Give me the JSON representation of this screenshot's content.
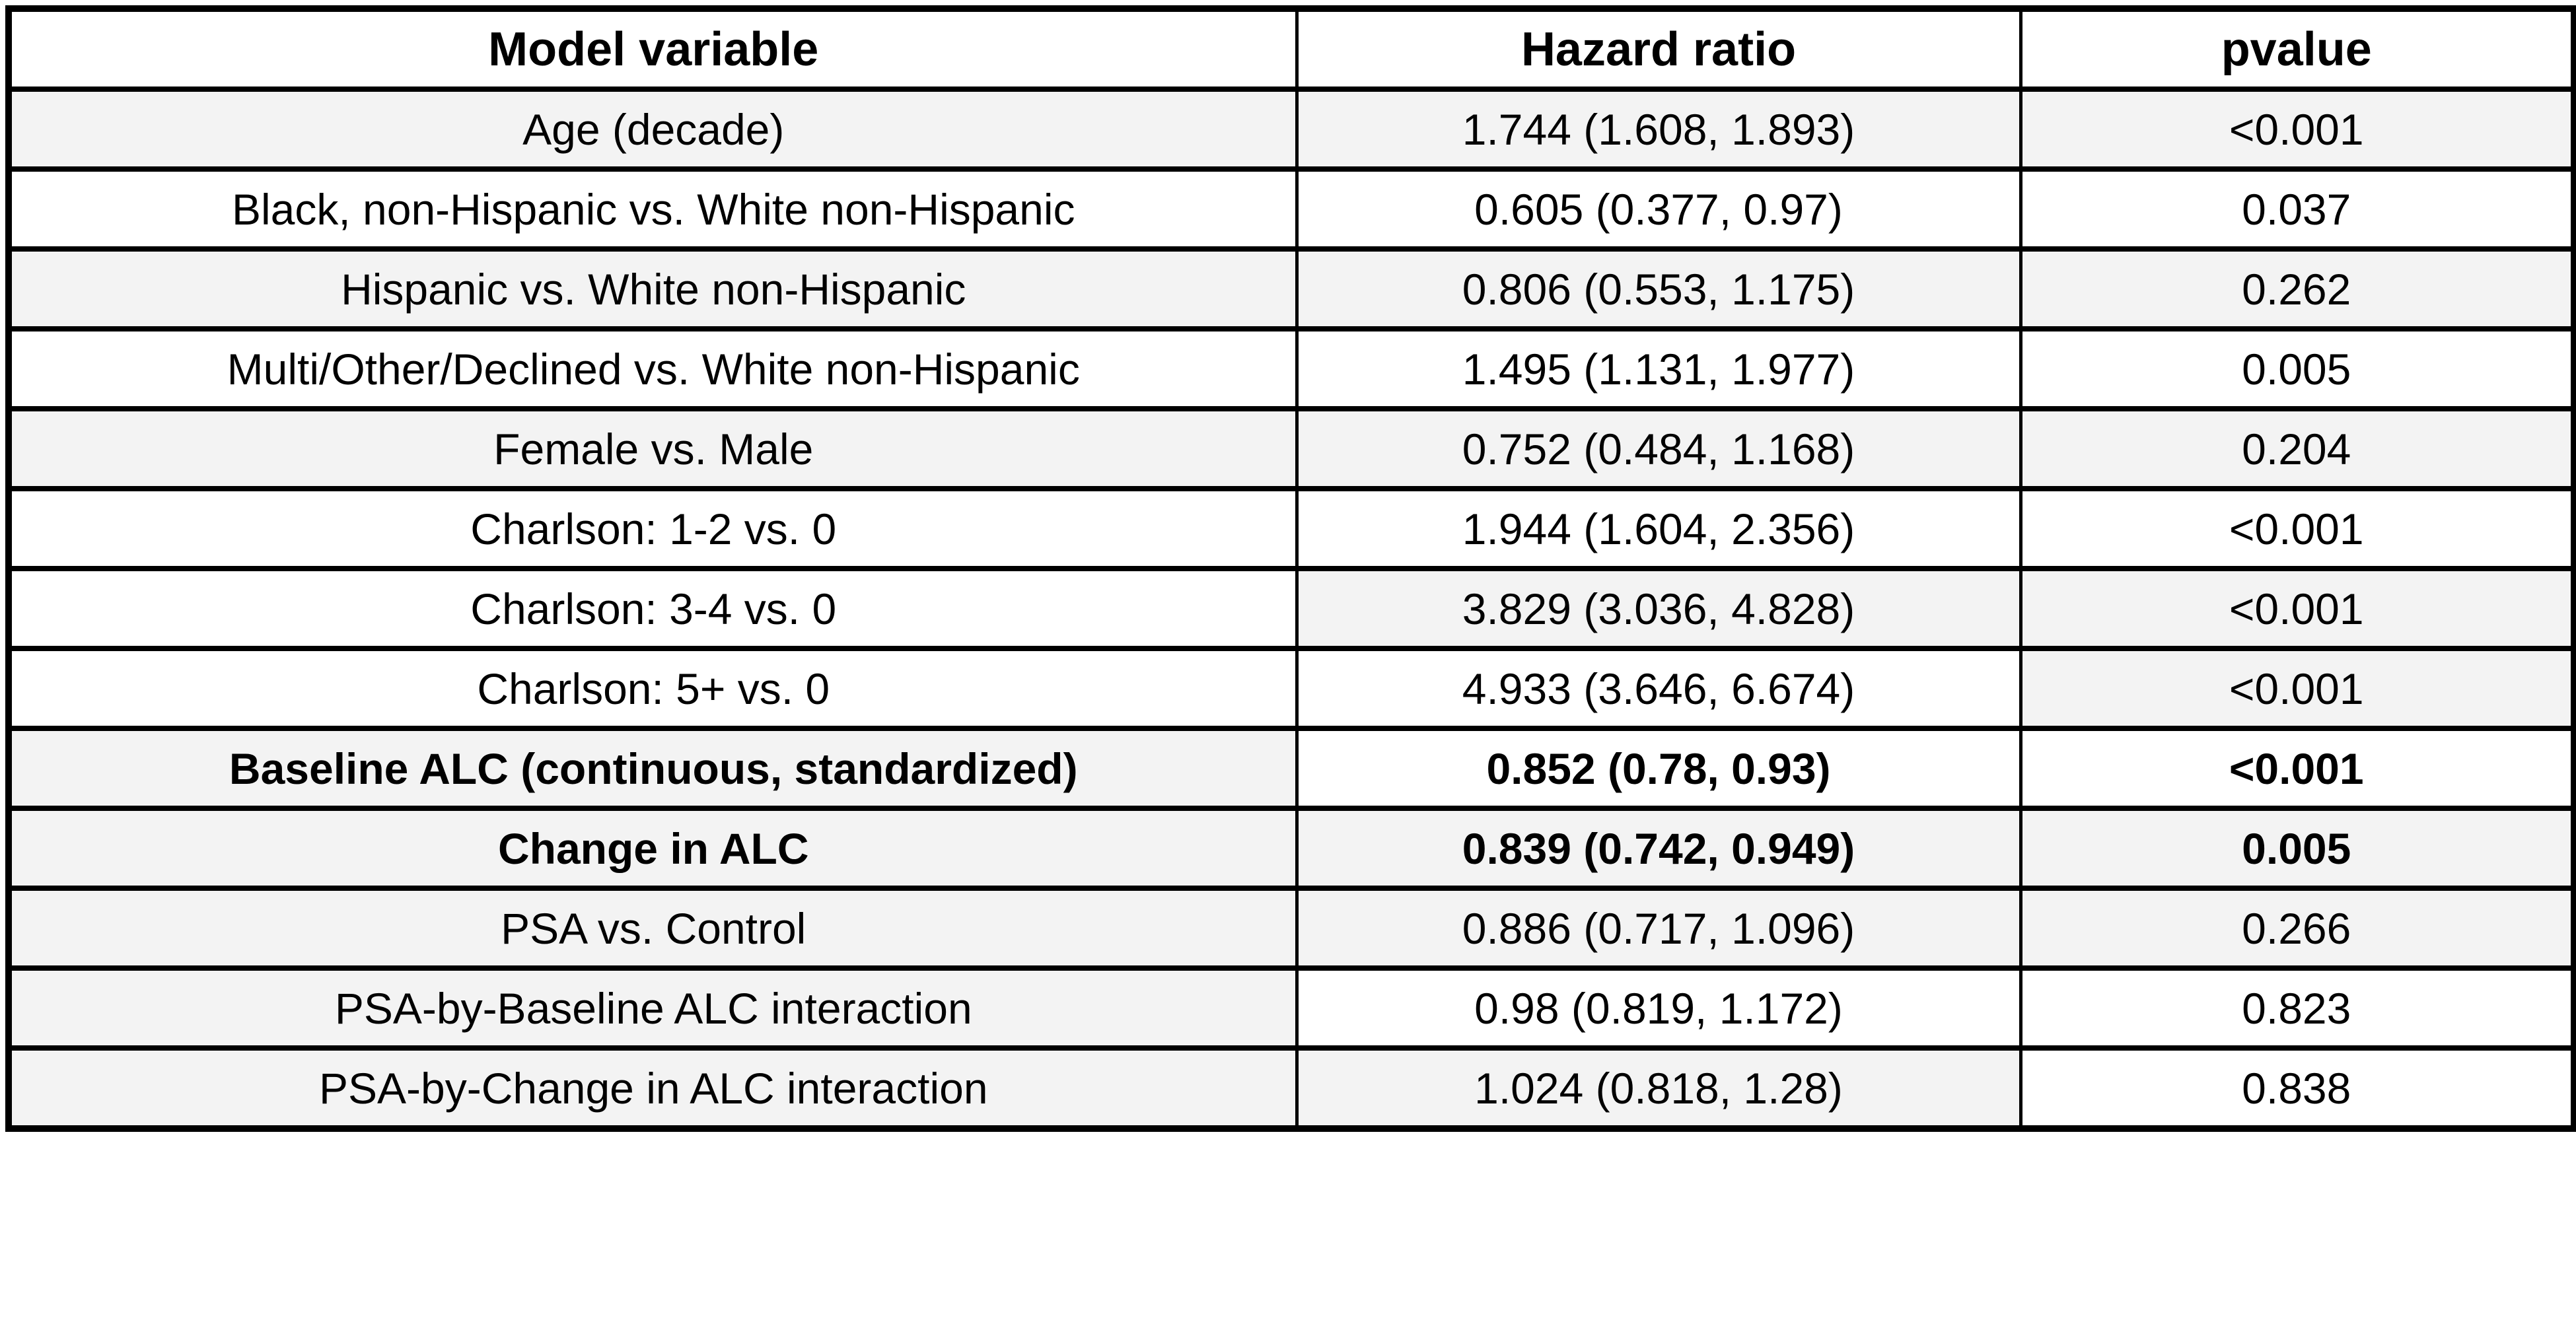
{
  "colors": {
    "background": "#ffffff",
    "border": "#000000",
    "text": "#000000",
    "row_shade": "#f3f3f3"
  },
  "table": {
    "columns": [
      "Model variable",
      "Hazard ratio",
      "pvalue"
    ],
    "rows": [
      {
        "variable": "Age (decade)",
        "hazard_ratio": "1.744 (1.608, 1.893)",
        "pvalue": "<0.001",
        "bold": false,
        "shaded": [
          true,
          true,
          true
        ]
      },
      {
        "variable": "Black, non-Hispanic vs. White non-Hispanic",
        "hazard_ratio": "0.605 (0.377, 0.97)",
        "pvalue": "0.037",
        "bold": false,
        "shaded": [
          false,
          false,
          false
        ]
      },
      {
        "variable": "Hispanic vs. White non-Hispanic",
        "hazard_ratio": "0.806 (0.553, 1.175)",
        "pvalue": "0.262",
        "bold": false,
        "shaded": [
          true,
          true,
          true
        ]
      },
      {
        "variable": "Multi/Other/Declined vs. White non-Hispanic",
        "hazard_ratio": "1.495 (1.131, 1.977)",
        "pvalue": "0.005",
        "bold": false,
        "shaded": [
          false,
          false,
          false
        ]
      },
      {
        "variable": "Female vs. Male",
        "hazard_ratio": "0.752 (0.484, 1.168)",
        "pvalue": "0.204",
        "bold": false,
        "shaded": [
          true,
          true,
          true
        ]
      },
      {
        "variable": "Charlson: 1-2 vs. 0",
        "hazard_ratio": "1.944 (1.604, 2.356)",
        "pvalue": "<0.001",
        "bold": false,
        "shaded": [
          false,
          false,
          false
        ]
      },
      {
        "variable": "Charlson: 3-4 vs. 0",
        "hazard_ratio": "3.829 (3.036, 4.828)",
        "pvalue": "<0.001",
        "bold": false,
        "shaded": [
          false,
          true,
          true
        ]
      },
      {
        "variable": "Charlson: 5+ vs. 0",
        "hazard_ratio": "4.933 (3.646, 6.674)",
        "pvalue": "<0.001",
        "bold": false,
        "shaded": [
          false,
          false,
          true
        ]
      },
      {
        "variable": "Baseline ALC (continuous, standardized)",
        "hazard_ratio": "0.852 (0.78, 0.93)",
        "pvalue": "<0.001",
        "bold": true,
        "shaded": [
          true,
          false,
          false
        ]
      },
      {
        "variable": "Change in ALC",
        "hazard_ratio": "0.839 (0.742, 0.949)",
        "pvalue": "0.005",
        "bold": true,
        "shaded": [
          true,
          true,
          true
        ]
      },
      {
        "variable": "PSA vs. Control",
        "hazard_ratio": "0.886 (0.717, 1.096)",
        "pvalue": "0.266",
        "bold": false,
        "shaded": [
          true,
          true,
          true
        ]
      },
      {
        "variable": "PSA-by-Baseline ALC interaction",
        "hazard_ratio": "0.98 (0.819, 1.172)",
        "pvalue": "0.823",
        "bold": false,
        "shaded": [
          true,
          false,
          false
        ]
      },
      {
        "variable": "PSA-by-Change in ALC interaction",
        "hazard_ratio": "1.024 (0.818, 1.28)",
        "pvalue": "0.838",
        "bold": false,
        "shaded": [
          true,
          true,
          false
        ]
      }
    ]
  },
  "chart_data": {
    "type": "table",
    "title": "",
    "columns": [
      "Model variable",
      "Hazard ratio",
      "pvalue"
    ],
    "rows": [
      [
        "Age (decade)",
        "1.744 (1.608, 1.893)",
        "<0.001"
      ],
      [
        "Black, non-Hispanic vs. White non-Hispanic",
        "0.605 (0.377, 0.97)",
        "0.037"
      ],
      [
        "Hispanic vs. White non-Hispanic",
        "0.806 (0.553, 1.175)",
        "0.262"
      ],
      [
        "Multi/Other/Declined vs. White non-Hispanic",
        "1.495 (1.131, 1.977)",
        "0.005"
      ],
      [
        "Female vs. Male",
        "0.752 (0.484, 1.168)",
        "0.204"
      ],
      [
        "Charlson: 1-2 vs. 0",
        "1.944 (1.604, 2.356)",
        "<0.001"
      ],
      [
        "Charlson: 3-4 vs. 0",
        "3.829 (3.036, 4.828)",
        "<0.001"
      ],
      [
        "Charlson: 5+ vs. 0",
        "4.933 (3.646, 6.674)",
        "<0.001"
      ],
      [
        "Baseline ALC (continuous, standardized)",
        "0.852 (0.78, 0.93)",
        "<0.001"
      ],
      [
        "Change in ALC",
        "0.839 (0.742, 0.949)",
        "0.005"
      ],
      [
        "PSA vs. Control",
        "0.886 (0.717, 1.096)",
        "0.266"
      ],
      [
        "PSA-by-Baseline ALC interaction",
        "0.98 (0.819, 1.172)",
        "0.823"
      ],
      [
        "PSA-by-Change in ALC interaction",
        "1.024 (0.818, 1.28)",
        "0.838"
      ]
    ],
    "bold_row_indices": [
      8,
      9
    ],
    "hazard_ratio_point_estimates": [
      1.744,
      0.605,
      0.806,
      1.495,
      0.752,
      1.944,
      3.829,
      4.933,
      0.852,
      0.839,
      0.886,
      0.98,
      1.024
    ],
    "hazard_ratio_ci_low": [
      1.608,
      0.377,
      0.553,
      1.131,
      0.484,
      1.604,
      3.036,
      3.646,
      0.78,
      0.742,
      0.717,
      0.819,
      0.818
    ],
    "hazard_ratio_ci_high": [
      1.893,
      0.97,
      1.175,
      1.977,
      1.168,
      2.356,
      4.828,
      6.674,
      0.93,
      0.949,
      1.096,
      1.172,
      1.28
    ]
  }
}
